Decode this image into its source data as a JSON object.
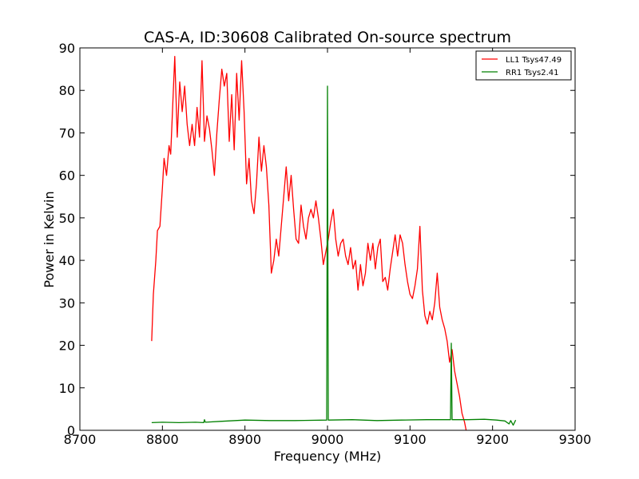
{
  "chart_data": {
    "type": "line",
    "title": "CAS-A, ID:30608 Calibrated On-source spectrum",
    "xlabel": "Frequency (MHz)",
    "ylabel": "Power in Kelvin",
    "xlim": [
      8700,
      9300
    ],
    "ylim": [
      0,
      90
    ],
    "xticks": [
      8700,
      8800,
      8900,
      9000,
      9100,
      9200,
      9300
    ],
    "yticks": [
      0,
      10,
      20,
      30,
      40,
      50,
      60,
      70,
      80,
      90
    ],
    "grid": false,
    "legend_position": "top-right",
    "series": [
      {
        "name": "LL1 Tsys47.49",
        "color": "#ff0000",
        "points": [
          [
            8787,
            21
          ],
          [
            8789,
            32
          ],
          [
            8792,
            40
          ],
          [
            8794,
            47
          ],
          [
            8797,
            48
          ],
          [
            8800,
            57
          ],
          [
            8802,
            64
          ],
          [
            8805,
            60
          ],
          [
            8808,
            67
          ],
          [
            8810,
            65
          ],
          [
            8812,
            74
          ],
          [
            8815,
            88
          ],
          [
            8818,
            69
          ],
          [
            8821,
            82
          ],
          [
            8824,
            75
          ],
          [
            8827,
            81
          ],
          [
            8830,
            72
          ],
          [
            8833,
            67
          ],
          [
            8836,
            72
          ],
          [
            8839,
            67
          ],
          [
            8842,
            76
          ],
          [
            8845,
            69
          ],
          [
            8848,
            87
          ],
          [
            8851,
            68
          ],
          [
            8854,
            74
          ],
          [
            8857,
            71
          ],
          [
            8860,
            66
          ],
          [
            8863,
            60
          ],
          [
            8866,
            70
          ],
          [
            8869,
            78
          ],
          [
            8872,
            85
          ],
          [
            8875,
            81
          ],
          [
            8878,
            84
          ],
          [
            8881,
            68
          ],
          [
            8884,
            79
          ],
          [
            8887,
            66
          ],
          [
            8890,
            84
          ],
          [
            8893,
            73
          ],
          [
            8896,
            87
          ],
          [
            8899,
            75
          ],
          [
            8902,
            58
          ],
          [
            8905,
            64
          ],
          [
            8908,
            54
          ],
          [
            8911,
            51
          ],
          [
            8914,
            58
          ],
          [
            8917,
            69
          ],
          [
            8920,
            61
          ],
          [
            8923,
            67
          ],
          [
            8926,
            62
          ],
          [
            8929,
            53
          ],
          [
            8932,
            37
          ],
          [
            8935,
            40
          ],
          [
            8938,
            45
          ],
          [
            8941,
            41
          ],
          [
            8944,
            48
          ],
          [
            8947,
            55
          ],
          [
            8950,
            62
          ],
          [
            8953,
            54
          ],
          [
            8956,
            60
          ],
          [
            8959,
            52
          ],
          [
            8962,
            45
          ],
          [
            8965,
            44
          ],
          [
            8968,
            53
          ],
          [
            8971,
            48
          ],
          [
            8974,
            45
          ],
          [
            8977,
            50
          ],
          [
            8980,
            52
          ],
          [
            8983,
            50
          ],
          [
            8986,
            54
          ],
          [
            8989,
            50
          ],
          [
            8992,
            45
          ],
          [
            8995,
            39
          ],
          [
            8998,
            42
          ],
          [
            9001,
            45
          ],
          [
            9004,
            49
          ],
          [
            9007,
            52
          ],
          [
            9010,
            45
          ],
          [
            9013,
            41
          ],
          [
            9016,
            44
          ],
          [
            9019,
            45
          ],
          [
            9022,
            41
          ],
          [
            9025,
            39
          ],
          [
            9028,
            43
          ],
          [
            9031,
            38
          ],
          [
            9034,
            40
          ],
          [
            9037,
            33
          ],
          [
            9040,
            39
          ],
          [
            9043,
            34
          ],
          [
            9046,
            37
          ],
          [
            9049,
            44
          ],
          [
            9052,
            40
          ],
          [
            9055,
            44
          ],
          [
            9058,
            38
          ],
          [
            9061,
            43
          ],
          [
            9064,
            45
          ],
          [
            9067,
            35
          ],
          [
            9070,
            36
          ],
          [
            9073,
            33
          ],
          [
            9076,
            38
          ],
          [
            9079,
            42
          ],
          [
            9082,
            46
          ],
          [
            9085,
            41
          ],
          [
            9088,
            46
          ],
          [
            9091,
            44
          ],
          [
            9094,
            39
          ],
          [
            9097,
            35
          ],
          [
            9100,
            32
          ],
          [
            9103,
            31
          ],
          [
            9106,
            34
          ],
          [
            9109,
            38
          ],
          [
            9112,
            48
          ],
          [
            9115,
            33
          ],
          [
            9118,
            27
          ],
          [
            9121,
            25
          ],
          [
            9124,
            28
          ],
          [
            9127,
            26
          ],
          [
            9130,
            30
          ],
          [
            9133,
            37
          ],
          [
            9136,
            29
          ],
          [
            9139,
            26
          ],
          [
            9142,
            24
          ],
          [
            9145,
            21
          ],
          [
            9148,
            16
          ],
          [
            9151,
            19
          ],
          [
            9154,
            14
          ],
          [
            9157,
            11
          ],
          [
            9160,
            8
          ],
          [
            9163,
            4
          ],
          [
            9166,
            2
          ],
          [
            9168,
            0
          ]
        ]
      },
      {
        "name": "RR1 Tsys2.41",
        "color": "#008000",
        "points": [
          [
            8787,
            1.8
          ],
          [
            8800,
            1.9
          ],
          [
            8820,
            1.8
          ],
          [
            8840,
            1.9
          ],
          [
            8850,
            1.8
          ],
          [
            8851,
            2.5
          ],
          [
            8852,
            1.9
          ],
          [
            8870,
            2.1
          ],
          [
            8900,
            2.4
          ],
          [
            8930,
            2.3
          ],
          [
            8960,
            2.3
          ],
          [
            8999,
            2.4
          ],
          [
            9000,
            81
          ],
          [
            9001,
            2.4
          ],
          [
            9030,
            2.5
          ],
          [
            9060,
            2.3
          ],
          [
            9090,
            2.4
          ],
          [
            9120,
            2.5
          ],
          [
            9149,
            2.5
          ],
          [
            9150,
            20.5
          ],
          [
            9151,
            2.5
          ],
          [
            9170,
            2.5
          ],
          [
            9190,
            2.6
          ],
          [
            9205,
            2.4
          ],
          [
            9215,
            2.2
          ],
          [
            9220,
            1.5
          ],
          [
            9222,
            2.3
          ],
          [
            9225,
            1.2
          ],
          [
            9228,
            2.4
          ]
        ]
      }
    ]
  }
}
